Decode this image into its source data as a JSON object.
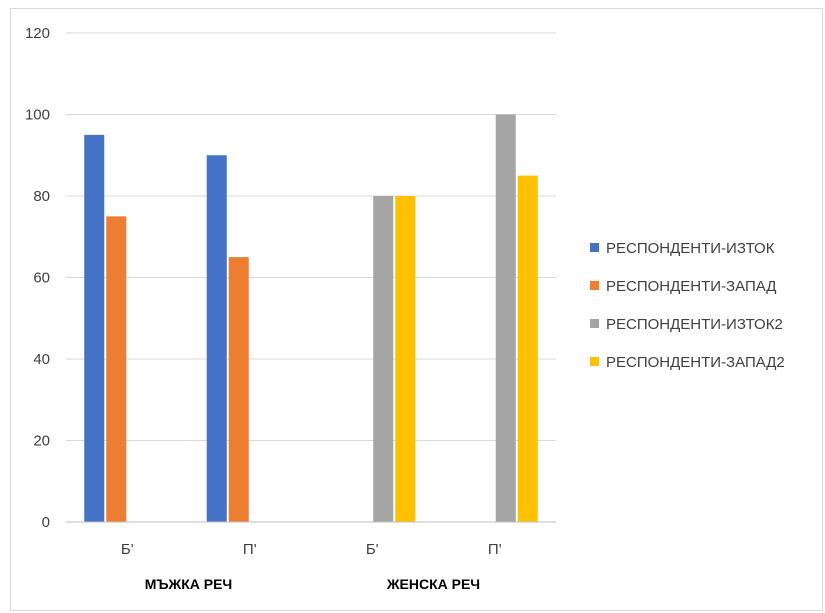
{
  "chart_data": {
    "type": "bar",
    "categories": [
      "Б'",
      "П'",
      "Б'",
      "П'"
    ],
    "groups": [
      "МЪЖКА РЕЧ",
      "ЖЕНСКА РЕЧ"
    ],
    "ylim": [
      0,
      120
    ],
    "yticks": [
      "0",
      "20",
      "40",
      "60",
      "80",
      "100",
      "120"
    ],
    "grid": true,
    "legend_position": "right",
    "series": [
      {
        "name": "РЕСПОНДЕНТИ-ИЗТОК",
        "color": "#4472C4",
        "values": [
          95,
          90,
          null,
          null
        ]
      },
      {
        "name": "РЕСПОНДЕНТИ-ЗАПАД",
        "color": "#ED7D31",
        "values": [
          75,
          65,
          null,
          null
        ]
      },
      {
        "name": "РЕСПОНДЕНТИ-ИЗТОК2",
        "color": "#A5A5A5",
        "values": [
          null,
          null,
          80,
          100
        ]
      },
      {
        "name": "РЕСПОНДЕНТИ-ЗАПАД2",
        "color": "#FFC000",
        "values": [
          null,
          null,
          80,
          85
        ]
      }
    ]
  }
}
